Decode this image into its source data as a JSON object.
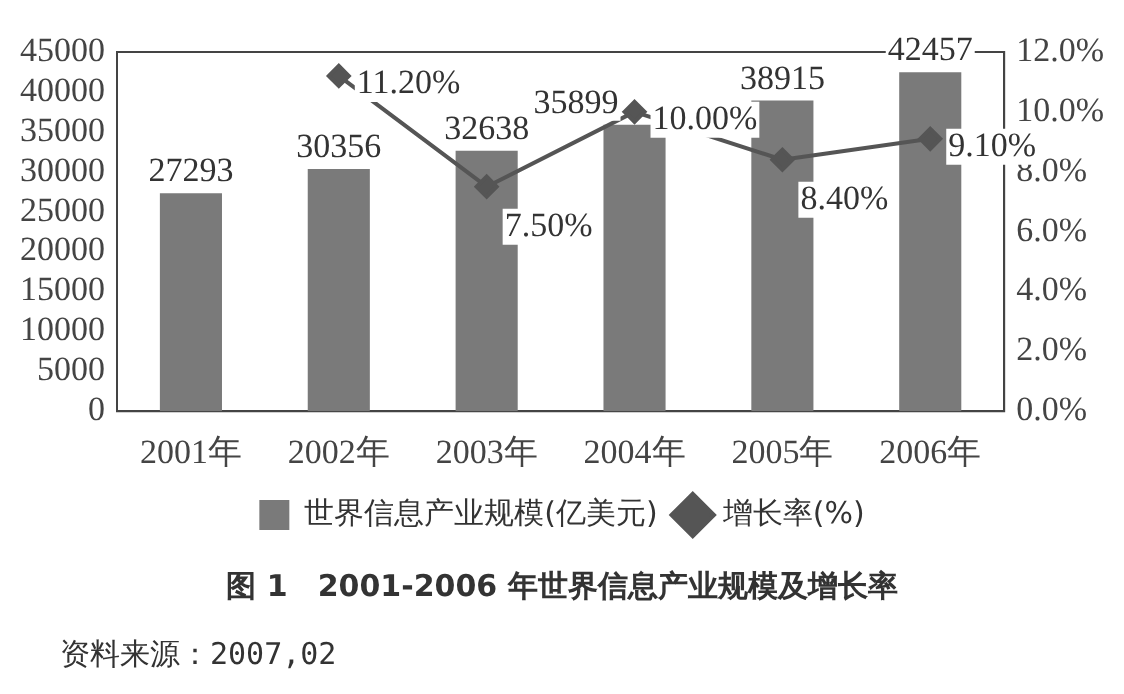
{
  "chart_data": {
    "type": "bar",
    "title": "图 1　2001-2006 年世界信息产业规模及增长率",
    "categories": [
      "2001年",
      "2002年",
      "2003年",
      "2004年",
      "2005年",
      "2006年"
    ],
    "series": [
      {
        "name": "世界信息产业规模(亿美元)",
        "type": "bar",
        "color": "#7a7a7a",
        "values": [
          27293,
          30356,
          32638,
          35899,
          38915,
          42457
        ],
        "value_labels": [
          "27293",
          "30356",
          "32638",
          "35899",
          "38915",
          "42457"
        ]
      },
      {
        "name": "增长率(%)",
        "type": "line",
        "axis": "y2",
        "color": "#555555",
        "marker": "diamond",
        "values": [
          null,
          11.2,
          7.5,
          10.0,
          8.4,
          9.1
        ],
        "value_labels": [
          null,
          "11.20%",
          "7.50%",
          "10.00%",
          "8.40%",
          "9.10%"
        ]
      }
    ],
    "ylim": [
      0,
      45000
    ],
    "yticks": [
      0,
      5000,
      10000,
      15000,
      20000,
      25000,
      30000,
      35000,
      40000,
      45000
    ],
    "y2lim": [
      0,
      12
    ],
    "y2ticks": [
      {
        "value": 0,
        "label": "0.0%"
      },
      {
        "value": 2,
        "label": "2.0%"
      },
      {
        "value": 4,
        "label": "4.0%"
      },
      {
        "value": 6,
        "label": "6.0%"
      },
      {
        "value": 8,
        "label": "8.0%"
      },
      {
        "value": 10,
        "label": "10.0%"
      },
      {
        "value": 12,
        "label": "12.0%"
      }
    ],
    "legend": "bottom",
    "annotations": [
      "资料来源：2007,02"
    ]
  }
}
